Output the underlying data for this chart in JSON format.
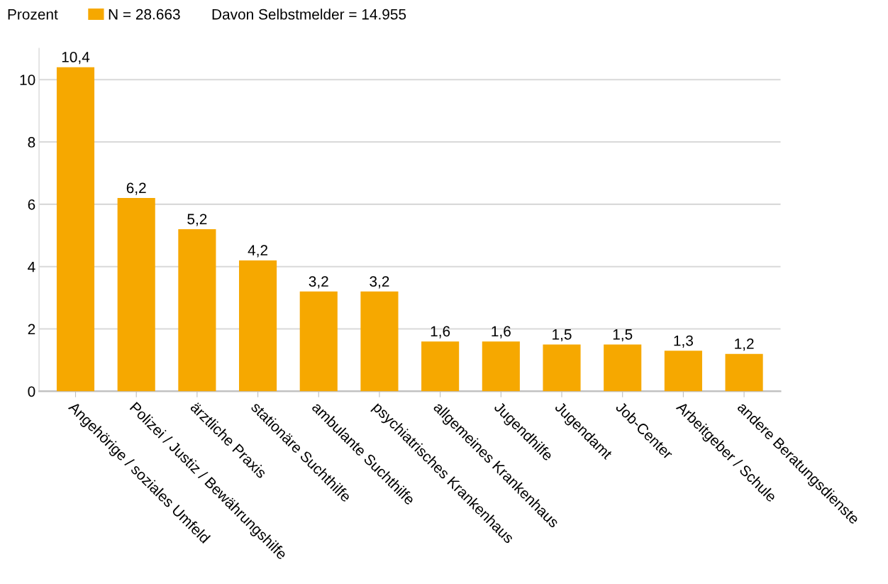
{
  "chart_data": {
    "type": "bar",
    "ylabel": "Prozent",
    "categories": [
      "Angehörige / soziales Umfeld",
      "Polizei / Justiz / Bewährungshilfe",
      "ärztliche Praxis",
      "stationäre Suchthilfe",
      "ambulante Suchthilfe",
      "psychiatrisches Krankenhaus",
      "allgemeines Krankenhaus",
      "Jugendhilfe",
      "Jugendamt",
      "Job-Center",
      "Arbeitgeber / Schule",
      "andere Beratungsdienste"
    ],
    "series": [
      {
        "name": "N = 28.663",
        "color": "#f6a800",
        "values": [
          10.4,
          6.2,
          5.2,
          4.2,
          3.2,
          3.2,
          1.6,
          1.6,
          1.5,
          1.5,
          1.3,
          1.2
        ],
        "value_labels": [
          "10,4",
          "6,2",
          "5,2",
          "4,2",
          "3,2",
          "3,2",
          "1,6",
          "1,6",
          "1,5",
          "1,5",
          "1,3",
          "1,2"
        ]
      }
    ],
    "annotations": [
      "Davon Selbstmelder = 14.955"
    ],
    "ylim": [
      0,
      11
    ],
    "yticks": [
      0,
      2,
      4,
      6,
      8,
      10
    ],
    "grid": "y",
    "legend": "top left"
  }
}
